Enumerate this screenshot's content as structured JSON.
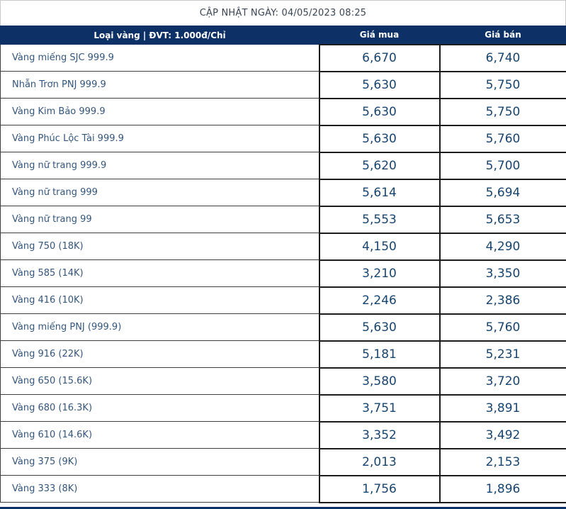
{
  "colors": {
    "header_bg": "#0d3166",
    "header_text": "#ffffff",
    "label_text": "#33567d",
    "price_text": "#17446f",
    "title_text": "#3a4654"
  },
  "update_bar": {
    "text": "CẬP NHẬT NGÀY: 04/05/2023 08:25"
  },
  "table": {
    "columns": {
      "type": "Loại vàng | ĐVT: 1.000đ/Chỉ",
      "buy": "Giá mua",
      "sell": "Giá bán"
    },
    "rows": [
      {
        "label": "Vàng miếng SJC 999.9",
        "buy": "6,670",
        "sell": "6,740"
      },
      {
        "label": "Nhẫn Trơn PNJ 999.9",
        "buy": "5,630",
        "sell": "5,750"
      },
      {
        "label": "Vàng Kim Bảo 999.9",
        "buy": "5,630",
        "sell": "5,750"
      },
      {
        "label": "Vàng Phúc Lộc Tài 999.9",
        "buy": "5,630",
        "sell": "5,760"
      },
      {
        "label": "Vàng nữ trang 999.9",
        "buy": "5,620",
        "sell": "5,700"
      },
      {
        "label": "Vàng nữ trang 999",
        "buy": "5,614",
        "sell": "5,694"
      },
      {
        "label": "Vàng nữ trang 99",
        "buy": "5,553",
        "sell": "5,653"
      },
      {
        "label": "Vàng 750 (18K)",
        "buy": "4,150",
        "sell": "4,290"
      },
      {
        "label": "Vàng 585 (14K)",
        "buy": "3,210",
        "sell": "3,350"
      },
      {
        "label": "Vàng 416 (10K)",
        "buy": "2,246",
        "sell": "2,386"
      },
      {
        "label": "Vàng miếng PNJ (999.9)",
        "buy": "5,630",
        "sell": "5,760"
      },
      {
        "label": "Vàng 916 (22K)",
        "buy": "5,181",
        "sell": "5,231"
      },
      {
        "label": "Vàng 650 (15.6K)",
        "buy": "3,580",
        "sell": "3,720"
      },
      {
        "label": "Vàng 680 (16.3K)",
        "buy": "3,751",
        "sell": "3,891"
      },
      {
        "label": "Vàng 610 (14.6K)",
        "buy": "3,352",
        "sell": "3,492"
      },
      {
        "label": "Vàng 375 (9K)",
        "buy": "2,013",
        "sell": "2,153"
      },
      {
        "label": "Vàng 333 (8K)",
        "buy": "1,756",
        "sell": "1,896"
      }
    ]
  }
}
